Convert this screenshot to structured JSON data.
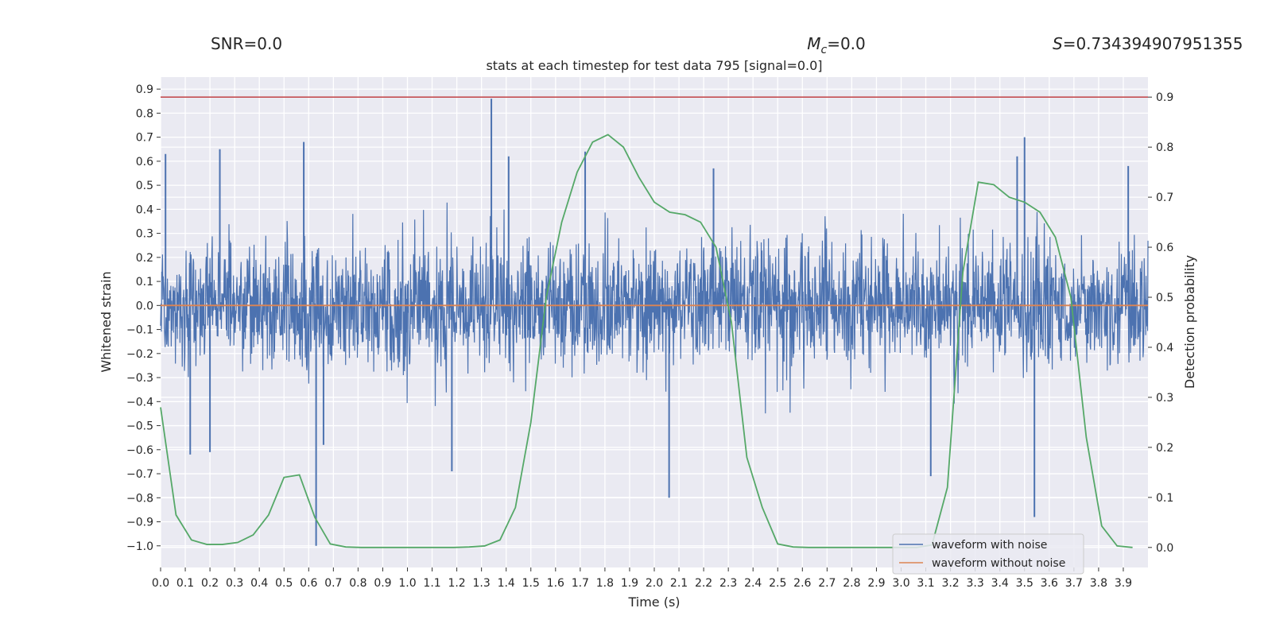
{
  "chart_data": {
    "type": "line",
    "header": {
      "snr": "SNR=0.0",
      "mc_symbol": "M",
      "mc_sub": "c",
      "mc_value": "=0.0",
      "s_symbol": "S",
      "s_value": "=0.734394907951355"
    },
    "title": "stats at each timestep for test data 795 [signal=0.0]",
    "xlabel": "Time (s)",
    "ylabel_left": "Whitened strain",
    "ylabel_right": "Detection probability",
    "xlim": [
      0.0,
      4.0
    ],
    "ylim_left": [
      -1.09,
      0.95
    ],
    "ylim_right": [
      -0.04,
      0.94
    ],
    "x_ticks": [
      "0.0",
      "0.1",
      "0.2",
      "0.3",
      "0.4",
      "0.5",
      "0.6",
      "0.7",
      "0.8",
      "0.9",
      "1.0",
      "1.1",
      "1.2",
      "1.3",
      "1.4",
      "1.5",
      "1.6",
      "1.7",
      "1.8",
      "1.9",
      "2.0",
      "2.1",
      "2.2",
      "2.3",
      "2.4",
      "2.5",
      "2.6",
      "2.7",
      "2.8",
      "2.9",
      "3.0",
      "3.1",
      "3.2",
      "3.3",
      "3.4",
      "3.5",
      "3.6",
      "3.7",
      "3.8",
      "3.9"
    ],
    "y_ticks_left": [
      "0.9",
      "0.8",
      "0.7",
      "0.6",
      "0.5",
      "0.4",
      "0.3",
      "0.2",
      "0.1",
      "0.0",
      "−0.1",
      "−0.2",
      "−0.3",
      "−0.4",
      "−0.5",
      "−0.6",
      "−0.7",
      "−0.8",
      "−0.9",
      "−1.0"
    ],
    "y_ticks_right": [
      "0.9",
      "0.8",
      "0.7",
      "0.6",
      "0.5",
      "0.4",
      "0.3",
      "0.2",
      "0.1",
      "0.0"
    ],
    "threshold": 0.9,
    "series": [
      {
        "name": "waveform with noise",
        "color": "#4c72b0",
        "kind": "noise",
        "spikes": [
          {
            "t": 0.02,
            "v": 0.63
          },
          {
            "t": 0.12,
            "v": -0.62
          },
          {
            "t": 0.24,
            "v": 0.65
          },
          {
            "t": 0.2,
            "v": -0.61
          },
          {
            "t": 0.58,
            "v": 0.68
          },
          {
            "t": 0.63,
            "v": -1.0
          },
          {
            "t": 0.66,
            "v": -0.58
          },
          {
            "t": 1.18,
            "v": -0.69
          },
          {
            "t": 1.34,
            "v": 0.86
          },
          {
            "t": 1.41,
            "v": 0.62
          },
          {
            "t": 1.72,
            "v": 0.64
          },
          {
            "t": 2.06,
            "v": -0.8
          },
          {
            "t": 2.24,
            "v": 0.57
          },
          {
            "t": 3.12,
            "v": -0.71
          },
          {
            "t": 3.47,
            "v": 0.62
          },
          {
            "t": 3.5,
            "v": 0.7
          },
          {
            "t": 3.54,
            "v": -0.88
          },
          {
            "t": 3.92,
            "v": 0.58
          }
        ]
      },
      {
        "name": "waveform without noise",
        "color": "#dd8452",
        "kind": "flat",
        "value": 0.0
      },
      {
        "name": "detection probability",
        "color": "#55a868",
        "axis": "right",
        "x": [
          0.0,
          0.0625,
          0.125,
          0.1875,
          0.25,
          0.3125,
          0.375,
          0.4375,
          0.5,
          0.5625,
          0.625,
          0.6875,
          0.75,
          0.8125,
          0.875,
          0.9375,
          1.0,
          1.0625,
          1.125,
          1.1875,
          1.25,
          1.3125,
          1.375,
          1.4375,
          1.5,
          1.5625,
          1.625,
          1.6875,
          1.75,
          1.8125,
          1.875,
          1.9375,
          2.0,
          2.0625,
          2.125,
          2.1875,
          2.25,
          2.3125,
          2.375,
          2.4375,
          2.5,
          2.5625,
          2.625,
          2.6875,
          2.75,
          2.8125,
          2.875,
          2.9375,
          3.0,
          3.0625,
          3.125,
          3.1875,
          3.25,
          3.3125,
          3.375,
          3.4375,
          3.5,
          3.5625,
          3.625,
          3.6875,
          3.75,
          3.8125,
          3.875,
          3.9375
        ],
        "values": [
          0.28,
          0.065,
          0.015,
          0.006,
          0.006,
          0.01,
          0.025,
          0.065,
          0.14,
          0.145,
          0.06,
          0.007,
          0.001,
          0.0,
          0.0,
          0.0,
          0.0,
          0.0,
          0.0,
          0.0,
          0.001,
          0.003,
          0.015,
          0.08,
          0.25,
          0.5,
          0.65,
          0.75,
          0.81,
          0.825,
          0.8,
          0.74,
          0.69,
          0.67,
          0.665,
          0.65,
          0.6,
          0.45,
          0.18,
          0.08,
          0.007,
          0.001,
          0.0,
          0.0,
          0.0,
          0.0,
          0.0,
          0.0,
          0.0,
          0.0,
          0.005,
          0.12,
          0.55,
          0.73,
          0.725,
          0.7,
          0.69,
          0.67,
          0.62,
          0.5,
          0.22,
          0.043,
          0.003,
          0.0
        ]
      },
      {
        "name": "threshold",
        "color": "#c44e52",
        "axis": "right",
        "kind": "hline",
        "value": 0.9
      }
    ],
    "legend": {
      "placement": "lower-right",
      "entries": [
        {
          "label": "waveform with noise",
          "color": "#4c72b0"
        },
        {
          "label": "waveform without noise",
          "color": "#dd8452"
        }
      ]
    },
    "grid": true
  }
}
